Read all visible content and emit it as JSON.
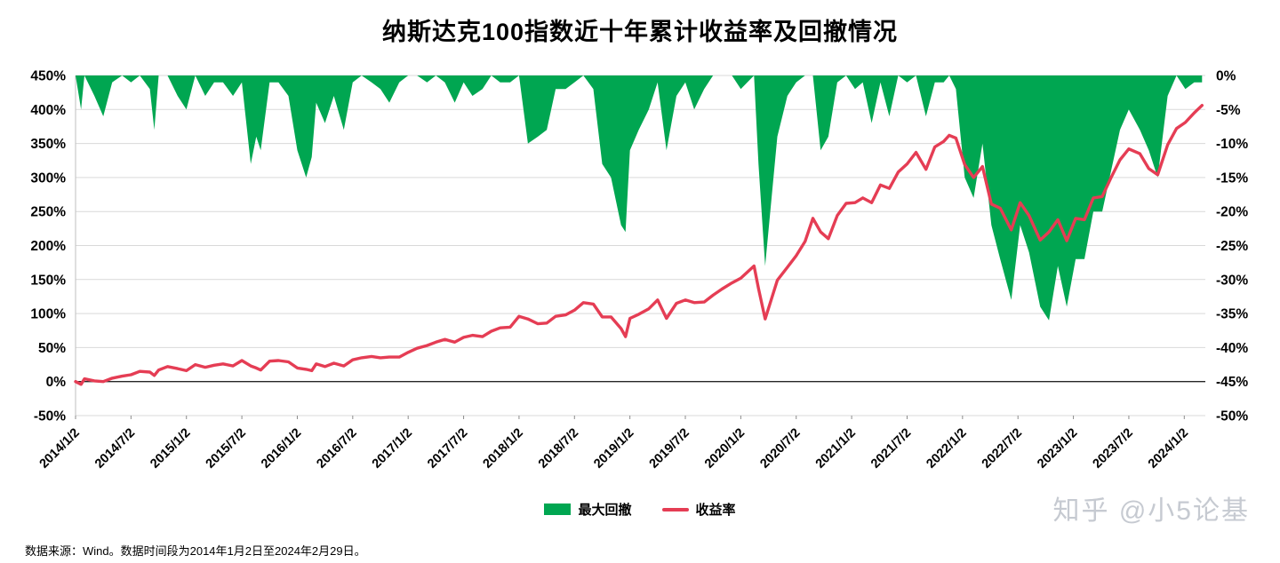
{
  "title": "纳斯达克100指数近十年累计收益率及回撤情况",
  "footer": {
    "source_note": "数据来源：Wind。数据时间段为2014年1月2日至2024年2月29日。"
  },
  "watermark": {
    "text": "知乎 @小5论基",
    "color": "#c6cad1"
  },
  "colors": {
    "drawdown_green": "#00A651",
    "return_red": "#E53D54",
    "grid": "#d9d9d9",
    "zero_axis": "#262626",
    "text": "#000000"
  },
  "chart_data": {
    "type": "area+line",
    "title": "纳斯达克100指数近十年累计收益率及回撤情况",
    "legend_position": "bottom",
    "grid": "horizontal",
    "x_range": [
      2014.0,
      2024.19
    ],
    "left_axis": {
      "name": "累计收益率",
      "min": -50,
      "max": 450,
      "values": [
        450,
        400,
        350,
        300,
        250,
        200,
        150,
        100,
        50,
        0,
        -50
      ],
      "labels": [
        "450%",
        "400%",
        "350%",
        "300%",
        "250%",
        "200%",
        "150%",
        "100%",
        "50%",
        "0%",
        "-50%"
      ]
    },
    "right_axis": {
      "name": "最大回撤",
      "min": -50,
      "max": 0,
      "values": [
        0,
        -5,
        -10,
        -15,
        -20,
        -25,
        -30,
        -35,
        -40,
        -45,
        -50
      ],
      "labels": [
        "0%",
        "-5%",
        "-10%",
        "-15%",
        "-20%",
        "-25%",
        "-30%",
        "-35%",
        "-40%",
        "-45%",
        "-50%"
      ]
    },
    "x_ticks": [
      {
        "pos": 2014.0,
        "label": "2014/1/2"
      },
      {
        "pos": 2014.5,
        "label": "2014/7/2"
      },
      {
        "pos": 2015.0,
        "label": "2015/1/2"
      },
      {
        "pos": 2015.5,
        "label": "2015/7/2"
      },
      {
        "pos": 2016.0,
        "label": "2016/1/2"
      },
      {
        "pos": 2016.5,
        "label": "2016/7/2"
      },
      {
        "pos": 2017.0,
        "label": "2017/1/2"
      },
      {
        "pos": 2017.5,
        "label": "2017/7/2"
      },
      {
        "pos": 2018.0,
        "label": "2018/1/2"
      },
      {
        "pos": 2018.5,
        "label": "2018/7/2"
      },
      {
        "pos": 2019.0,
        "label": "2019/1/2"
      },
      {
        "pos": 2019.5,
        "label": "2019/7/2"
      },
      {
        "pos": 2020.0,
        "label": "2020/1/2"
      },
      {
        "pos": 2020.5,
        "label": "2020/7/2"
      },
      {
        "pos": 2021.0,
        "label": "2021/1/2"
      },
      {
        "pos": 2021.5,
        "label": "2021/7/2"
      },
      {
        "pos": 2022.0,
        "label": "2022/1/2"
      },
      {
        "pos": 2022.5,
        "label": "2022/7/2"
      },
      {
        "pos": 2023.0,
        "label": "2023/1/2"
      },
      {
        "pos": 2023.5,
        "label": "2023/7/2"
      },
      {
        "pos": 2024.0,
        "label": "2024/1/2"
      }
    ],
    "series": [
      {
        "name": "最大回撤",
        "type": "area",
        "axis": "right",
        "color": "#00A651"
      },
      {
        "name": "收益率",
        "type": "line",
        "axis": "left",
        "color": "#E53D54"
      }
    ],
    "points": {
      "columns": [
        "year_decimal",
        "cumulative_return_pct",
        "drawdown_pct"
      ],
      "rows": [
        [
          2014.0,
          0,
          0
        ],
        [
          2014.05,
          -4,
          -5
        ],
        [
          2014.08,
          4,
          0
        ],
        [
          2014.17,
          1,
          -3
        ],
        [
          2014.25,
          0,
          -6
        ],
        [
          2014.33,
          5,
          -1
        ],
        [
          2014.42,
          8,
          0
        ],
        [
          2014.5,
          10,
          -1
        ],
        [
          2014.58,
          15,
          0
        ],
        [
          2014.67,
          14,
          -2
        ],
        [
          2014.71,
          9,
          -8
        ],
        [
          2014.75,
          17,
          0
        ],
        [
          2014.83,
          22,
          0
        ],
        [
          2014.92,
          19,
          -3
        ],
        [
          2015.0,
          16,
          -5
        ],
        [
          2015.08,
          25,
          0
        ],
        [
          2015.17,
          21,
          -3
        ],
        [
          2015.25,
          24,
          -1
        ],
        [
          2015.33,
          26,
          -1
        ],
        [
          2015.42,
          23,
          -3
        ],
        [
          2015.5,
          31,
          -1
        ],
        [
          2015.58,
          23,
          -13
        ],
        [
          2015.63,
          20,
          -9
        ],
        [
          2015.67,
          17,
          -11
        ],
        [
          2015.75,
          30,
          -1
        ],
        [
          2015.83,
          31,
          -1
        ],
        [
          2015.92,
          29,
          -3
        ],
        [
          2016.0,
          20,
          -11
        ],
        [
          2016.08,
          18,
          -15
        ],
        [
          2016.13,
          16,
          -12
        ],
        [
          2016.17,
          26,
          -4
        ],
        [
          2016.25,
          22,
          -7
        ],
        [
          2016.33,
          27,
          -3
        ],
        [
          2016.42,
          23,
          -8
        ],
        [
          2016.5,
          32,
          -1
        ],
        [
          2016.58,
          35,
          0
        ],
        [
          2016.67,
          37,
          -1
        ],
        [
          2016.75,
          35,
          -2
        ],
        [
          2016.83,
          36,
          -4
        ],
        [
          2016.92,
          36,
          -1
        ],
        [
          2017.0,
          43,
          0
        ],
        [
          2017.08,
          49,
          0
        ],
        [
          2017.17,
          53,
          -1
        ],
        [
          2017.25,
          58,
          0
        ],
        [
          2017.33,
          62,
          -1
        ],
        [
          2017.42,
          58,
          -4
        ],
        [
          2017.5,
          65,
          -1
        ],
        [
          2017.58,
          68,
          -3
        ],
        [
          2017.67,
          66,
          -2
        ],
        [
          2017.75,
          74,
          0
        ],
        [
          2017.83,
          79,
          -1
        ],
        [
          2017.92,
          80,
          -1
        ],
        [
          2018.0,
          96,
          0
        ],
        [
          2018.08,
          92,
          -10
        ],
        [
          2018.17,
          85,
          -9
        ],
        [
          2018.25,
          86,
          -8
        ],
        [
          2018.33,
          96,
          -2
        ],
        [
          2018.42,
          98,
          -2
        ],
        [
          2018.5,
          105,
          -1
        ],
        [
          2018.58,
          116,
          0
        ],
        [
          2018.67,
          114,
          -2
        ],
        [
          2018.75,
          95,
          -13
        ],
        [
          2018.83,
          95,
          -15
        ],
        [
          2018.92,
          78,
          -22
        ],
        [
          2018.96,
          66,
          -23
        ],
        [
          2019.0,
          93,
          -11
        ],
        [
          2019.08,
          99,
          -8
        ],
        [
          2019.17,
          107,
          -5
        ],
        [
          2019.25,
          120,
          -1
        ],
        [
          2019.33,
          93,
          -11
        ],
        [
          2019.42,
          115,
          -3
        ],
        [
          2019.5,
          120,
          -1
        ],
        [
          2019.58,
          116,
          -5
        ],
        [
          2019.67,
          117,
          -2
        ],
        [
          2019.75,
          127,
          0
        ],
        [
          2019.83,
          136,
          0
        ],
        [
          2019.92,
          145,
          0
        ],
        [
          2020.0,
          152,
          -2
        ],
        [
          2020.12,
          170,
          0
        ],
        [
          2020.16,
          137,
          -13
        ],
        [
          2020.22,
          92,
          -28
        ],
        [
          2020.33,
          149,
          -9
        ],
        [
          2020.42,
          168,
          -3
        ],
        [
          2020.5,
          185,
          -1
        ],
        [
          2020.58,
          206,
          0
        ],
        [
          2020.65,
          240,
          0
        ],
        [
          2020.72,
          220,
          -11
        ],
        [
          2020.79,
          210,
          -9
        ],
        [
          2020.87,
          244,
          -1
        ],
        [
          2020.95,
          262,
          0
        ],
        [
          2021.03,
          263,
          -2
        ],
        [
          2021.1,
          270,
          -1
        ],
        [
          2021.18,
          263,
          -7
        ],
        [
          2021.26,
          289,
          -1
        ],
        [
          2021.34,
          284,
          -6
        ],
        [
          2021.42,
          308,
          0
        ],
        [
          2021.5,
          320,
          -1
        ],
        [
          2021.58,
          337,
          0
        ],
        [
          2021.67,
          312,
          -6
        ],
        [
          2021.75,
          345,
          -1
        ],
        [
          2021.83,
          353,
          -1
        ],
        [
          2021.88,
          362,
          0
        ],
        [
          2021.94,
          358,
          -2
        ],
        [
          2022.02,
          319,
          -15
        ],
        [
          2022.1,
          300,
          -18
        ],
        [
          2022.18,
          316,
          -10
        ],
        [
          2022.26,
          261,
          -22
        ],
        [
          2022.34,
          255,
          -27
        ],
        [
          2022.44,
          223,
          -33
        ],
        [
          2022.52,
          263,
          -22
        ],
        [
          2022.6,
          244,
          -26
        ],
        [
          2022.7,
          208,
          -34
        ],
        [
          2022.78,
          220,
          -36
        ],
        [
          2022.86,
          238,
          -28
        ],
        [
          2022.94,
          207,
          -34
        ],
        [
          2023.02,
          240,
          -27
        ],
        [
          2023.1,
          238,
          -27
        ],
        [
          2023.18,
          270,
          -20
        ],
        [
          2023.26,
          272,
          -20
        ],
        [
          2023.34,
          300,
          -14
        ],
        [
          2023.42,
          326,
          -8
        ],
        [
          2023.5,
          342,
          -5
        ],
        [
          2023.6,
          335,
          -8
        ],
        [
          2023.68,
          313,
          -11
        ],
        [
          2023.76,
          304,
          -15
        ],
        [
          2023.85,
          348,
          -3
        ],
        [
          2023.93,
          372,
          0
        ],
        [
          2024.01,
          381,
          -2
        ],
        [
          2024.09,
          395,
          -1
        ],
        [
          2024.16,
          406,
          -1
        ]
      ]
    }
  }
}
